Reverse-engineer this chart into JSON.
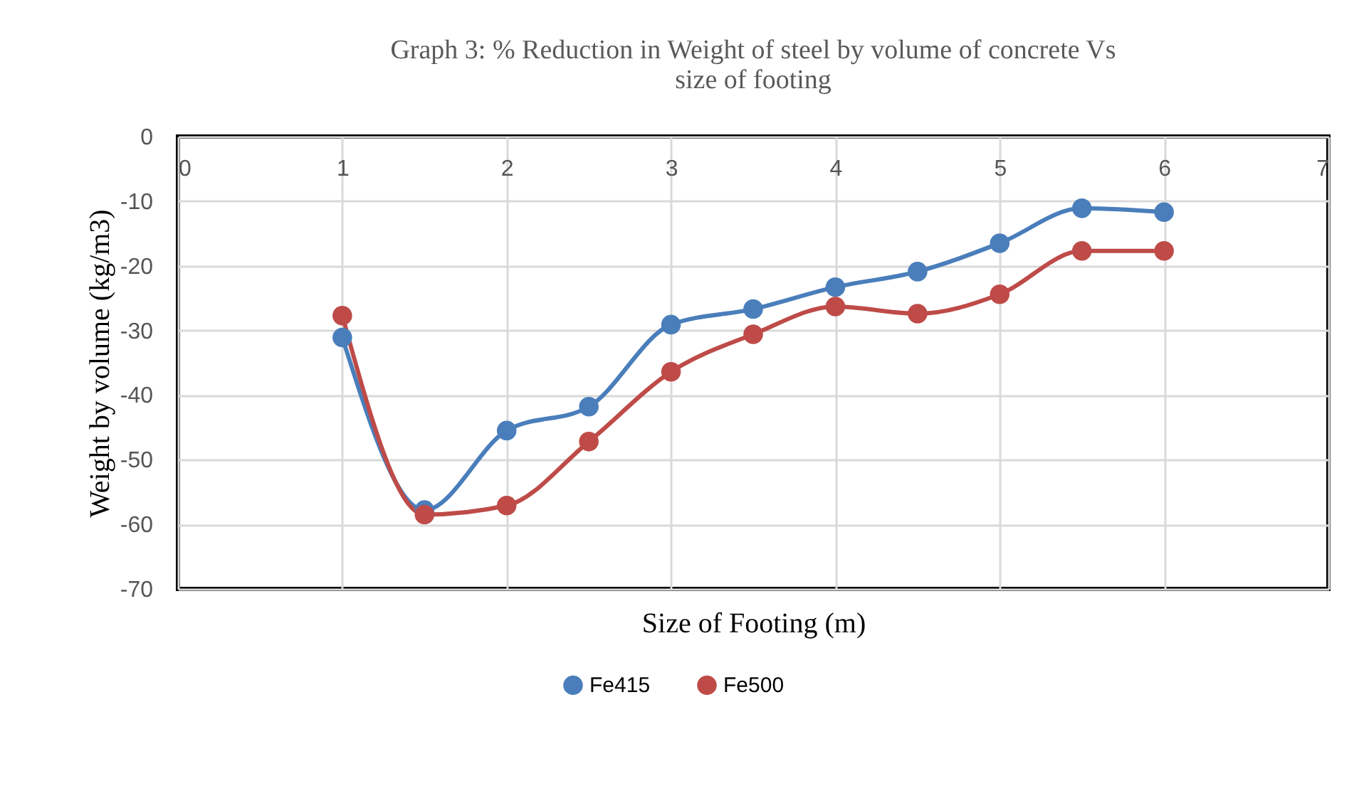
{
  "chart_data": {
    "type": "line",
    "title": "Graph 3: % Reduction in Weight of steel by volume of concrete Vs size of footing",
    "xlabel": "Size of Footing (m)",
    "ylabel": "Weight by volume (kg/m3)",
    "x": [
      1,
      1.5,
      2,
      2.5,
      3,
      3.5,
      4,
      4.5,
      5,
      5.5,
      6
    ],
    "series": [
      {
        "name": "Fe415",
        "color": "#4a7ebb",
        "values": [
          -31.1,
          -57.8,
          -45.5,
          -41.8,
          -29.1,
          -26.7,
          -23.3,
          -20.9,
          -16.5,
          -11.1,
          -11.7
        ]
      },
      {
        "name": "Fe500",
        "color": "#be4b48",
        "values": [
          -27.7,
          -58.5,
          -57.1,
          -47.2,
          -36.4,
          -30.6,
          -26.3,
          -27.4,
          -24.4,
          -17.7,
          -17.7
        ]
      }
    ],
    "xlim": [
      0,
      7
    ],
    "xticks": [
      0,
      1,
      2,
      3,
      4,
      5,
      6,
      7
    ],
    "ylim": [
      -70,
      0
    ],
    "yticks": [
      0,
      -10,
      -20,
      -30,
      -40,
      -50,
      -60,
      -70
    ],
    "grid": true,
    "legend": "bottom",
    "marker": "circle",
    "line_style": "solid"
  }
}
